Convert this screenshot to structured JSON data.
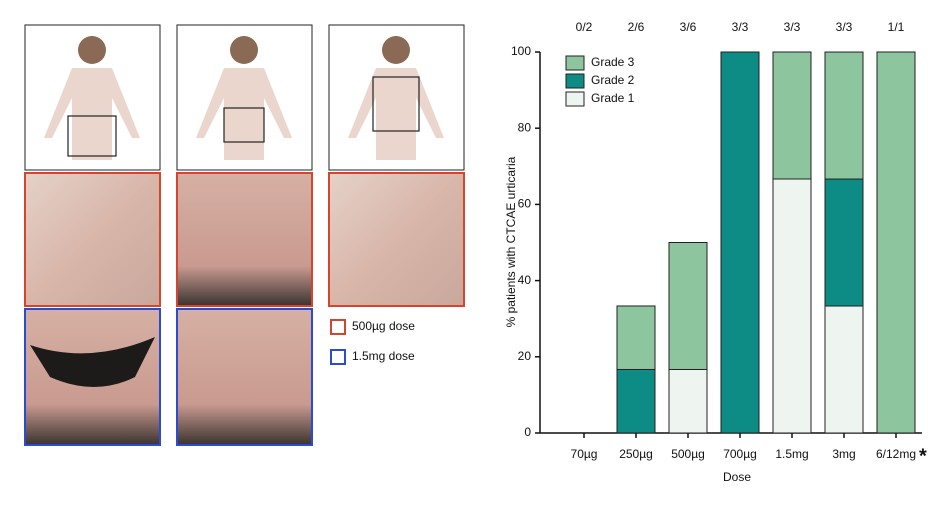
{
  "panel_legend": {
    "red": "500µg dose",
    "blue": "1.5mg dose"
  },
  "chart_data": {
    "type": "stacked_bar",
    "categories": [
      "70µg",
      "250µg",
      "500µg",
      "700µg",
      "1.5mg",
      "3mg",
      "6/12mg"
    ],
    "top_labels": [
      "0/2",
      "2/6",
      "3/6",
      "3/3",
      "3/3",
      "3/3",
      "1/1"
    ],
    "annotation": "*",
    "x_label": "Dose",
    "y_label": "% patients with CTCAE urticaria",
    "series": [
      {
        "name": "Grade 3",
        "color": "#8dc59e",
        "values": [
          0,
          16.67,
          33.33,
          0,
          33.33,
          33.33,
          100
        ]
      },
      {
        "name": "Grade 2",
        "color": "#0d8b85",
        "values": [
          0,
          16.67,
          0,
          100,
          0,
          33.33,
          0
        ]
      },
      {
        "name": "Grade 1",
        "color": "#eef4f0",
        "values": [
          0,
          0,
          16.67,
          0,
          66.67,
          33.33,
          0
        ]
      }
    ],
    "ylim": [
      0,
      100
    ],
    "yticks": [
      0,
      20,
      40,
      60,
      80,
      100
    ],
    "legend": "upper-left"
  }
}
